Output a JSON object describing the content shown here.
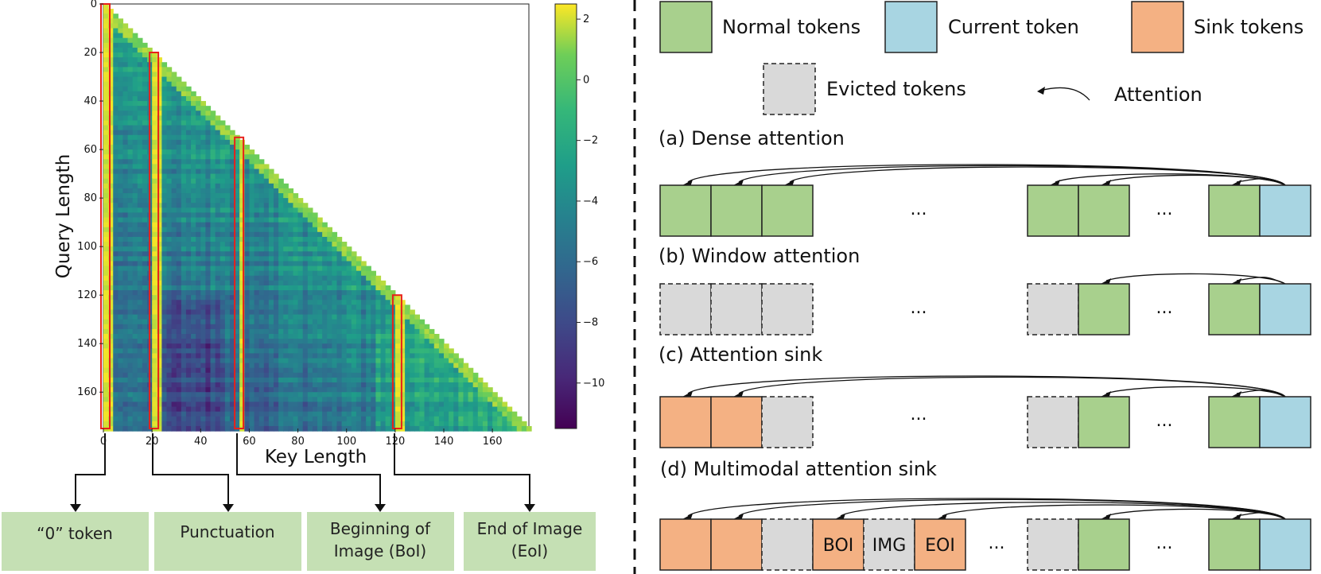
{
  "heatmap": {
    "xlabel": "Key Length",
    "ylabel": "Query Length",
    "x_ticks": [
      "0",
      "20",
      "40",
      "60",
      "80",
      "100",
      "120",
      "140",
      "160"
    ],
    "y_ticks": [
      "0",
      "20",
      "40",
      "60",
      "80",
      "100",
      "120",
      "140",
      "160"
    ],
    "colorbar_ticks": [
      "2",
      "0",
      "−2",
      "−4",
      "−6",
      "−8",
      "−10"
    ],
    "colorbar_range": [
      -11.5,
      2.5
    ],
    "size": 175,
    "highlight_columns": [
      0,
      20,
      55,
      120
    ]
  },
  "callouts": [
    "“0” token",
    "Punctuation",
    "Beginning of|Image (BoI)",
    "End of Image|(EoI)"
  ],
  "legend": {
    "normal": "Normal tokens",
    "current": "Current token",
    "sink": "Sink tokens",
    "evicted": "Evicted tokens",
    "attention": "Attention"
  },
  "sections": {
    "a": "(a) Dense attention",
    "b": "(b) Window attention",
    "c": "(c) Attention sink",
    "d": "(d) Multimodal attention sink"
  },
  "ellipsis": "...",
  "token_labels": {
    "boi": "BOI",
    "img": "IMG",
    "eoi": "EOI"
  },
  "colors": {
    "normal": "#a8d08d",
    "current": "#a8d5e2",
    "sink": "#f4b183",
    "evicted": "#d9d9d9",
    "callout_box": "#c5e0b4",
    "highlight": "#e8201a"
  }
}
